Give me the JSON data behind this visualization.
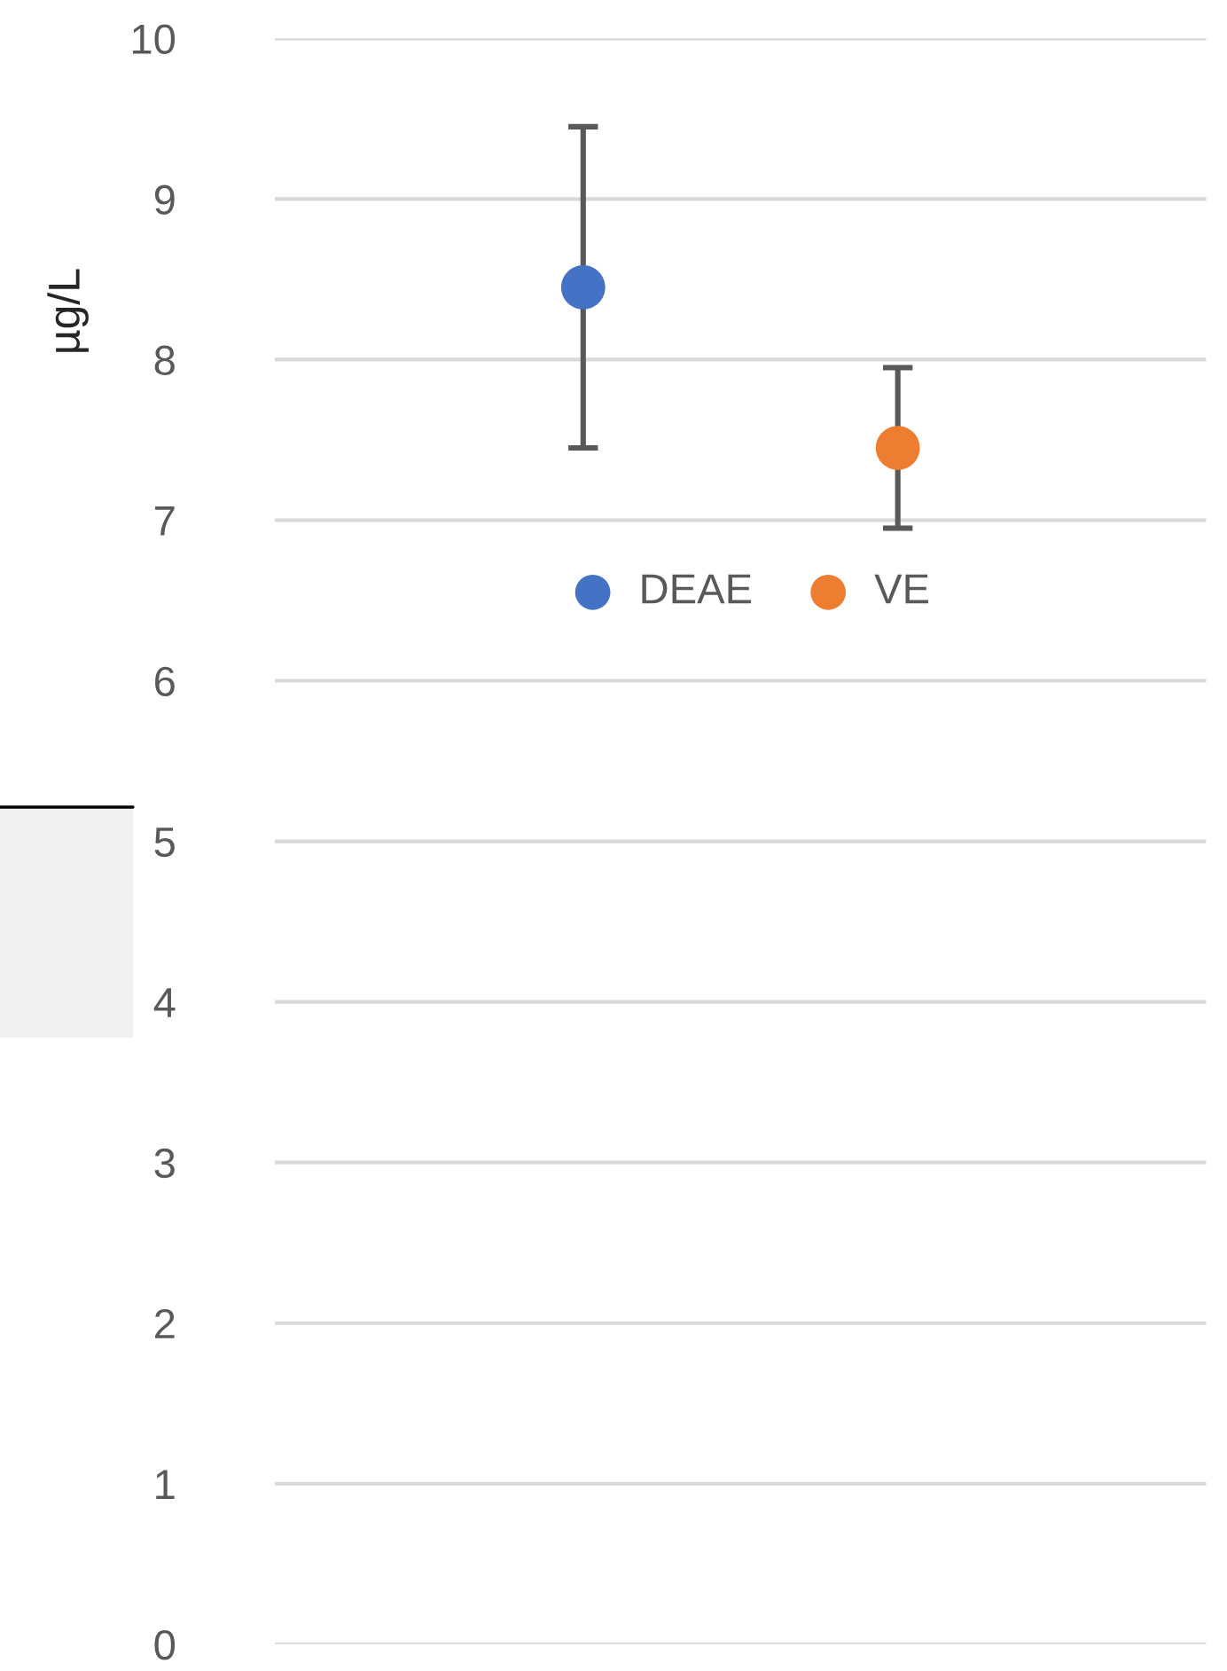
{
  "chart_data": {
    "type": "scatter",
    "ylabel": "µg/L",
    "categories": [
      null,
      null
    ],
    "series": [
      {
        "name": "DEAE",
        "color": "#4472c4",
        "values": [
          8.45,
          null
        ],
        "errors": [
          1.0,
          null
        ]
      },
      {
        "name": "VE",
        "color": "#ed7d31",
        "values": [
          null,
          7.45
        ],
        "errors": [
          null,
          0.5
        ]
      }
    ],
    "ylim": [
      0,
      10
    ],
    "yticks": [
      0,
      1,
      2,
      3,
      4,
      5,
      6,
      7,
      8,
      9,
      10
    ],
    "grid": "y",
    "legend": "top",
    "marker": "circle"
  }
}
